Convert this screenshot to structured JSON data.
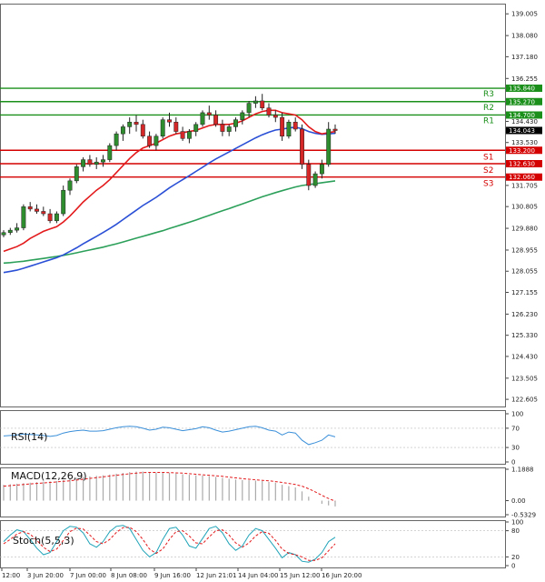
{
  "colors": {
    "up_candle": "#2e8b2e",
    "down_candle": "#d62728",
    "ema_fast": "#e31a1c",
    "ema_mid": "#2b50d6",
    "ema_slow": "#2ca05a",
    "resistance": "#1a8f1a",
    "support": "#d40000",
    "rsi": "#3a8fd9",
    "macd_signal": "#e31a1c",
    "stoch_k": "#1fa3b8",
    "stoch_d": "#e31a1c",
    "current_price_tag": "#000000"
  },
  "chart_data": [
    {
      "type": "candlestick",
      "panel": "price",
      "ylim": [
        122.3,
        139.4
      ],
      "y_ticks": [
        "139.005",
        "138.080",
        "137.180",
        "136.255",
        "134.430",
        "133.530",
        "131.705",
        "130.805",
        "129.880",
        "128.955",
        "128.055",
        "127.155",
        "126.230",
        "125.330",
        "124.430",
        "123.505",
        "122.605"
      ],
      "x_ticks": [
        "12:00",
        "3 Jun 20:00",
        "7 Jun 00:00",
        "8 Jun 08:00",
        "9 Jun 16:00",
        "12 Jun 21:01",
        "14 Jun 04:00",
        "15 Jun 12:00",
        "16 Jun 20:00"
      ],
      "levels": [
        {
          "name": "R3",
          "value": 135.84,
          "tag": "135.840"
        },
        {
          "name": "R2",
          "value": 135.27,
          "tag": "135.270"
        },
        {
          "name": "R1",
          "value": 134.7,
          "tag": "134.700"
        },
        {
          "name": "S1",
          "value": 133.2,
          "tag": "133.200"
        },
        {
          "name": "S2",
          "value": 132.63,
          "tag": "132.630"
        },
        {
          "name": "S3",
          "value": 132.06,
          "tag": "132.060"
        }
      ],
      "current_price": {
        "value": 134.043,
        "tag": "134.043"
      },
      "candles": [
        [
          129.6,
          129.8,
          129.5,
          129.7
        ],
        [
          129.7,
          129.9,
          129.6,
          129.8
        ],
        [
          129.8,
          130.1,
          129.7,
          129.9
        ],
        [
          129.9,
          130.9,
          129.8,
          130.8
        ],
        [
          130.8,
          131.0,
          130.6,
          130.7
        ],
        [
          130.7,
          130.9,
          130.5,
          130.6
        ],
        [
          130.6,
          130.8,
          130.4,
          130.5
        ],
        [
          130.5,
          130.7,
          130.1,
          130.2
        ],
        [
          130.2,
          130.6,
          130.1,
          130.5
        ],
        [
          130.5,
          131.7,
          130.4,
          131.5
        ],
        [
          131.5,
          132.0,
          131.3,
          131.9
        ],
        [
          131.9,
          132.6,
          131.8,
          132.5
        ],
        [
          132.5,
          132.9,
          132.3,
          132.8
        ],
        [
          132.8,
          133.0,
          132.5,
          132.6
        ],
        [
          132.6,
          132.9,
          132.4,
          132.7
        ],
        [
          132.7,
          133.0,
          132.5,
          132.8
        ],
        [
          132.8,
          133.5,
          132.7,
          133.4
        ],
        [
          133.4,
          134.0,
          133.2,
          133.9
        ],
        [
          133.9,
          134.3,
          133.6,
          134.2
        ],
        [
          134.2,
          134.6,
          133.9,
          134.4
        ],
        [
          134.4,
          134.7,
          134.0,
          134.3
        ],
        [
          134.3,
          134.5,
          133.7,
          133.8
        ],
        [
          133.8,
          134.0,
          133.3,
          133.4
        ],
        [
          133.4,
          133.9,
          133.2,
          133.8
        ],
        [
          133.8,
          134.6,
          133.7,
          134.5
        ],
        [
          134.5,
          134.8,
          134.2,
          134.4
        ],
        [
          134.4,
          134.6,
          133.9,
          134.0
        ],
        [
          134.0,
          134.2,
          133.6,
          133.7
        ],
        [
          133.7,
          134.1,
          133.5,
          134.0
        ],
        [
          134.0,
          134.4,
          133.8,
          134.3
        ],
        [
          134.3,
          134.9,
          134.2,
          134.8
        ],
        [
          134.8,
          135.1,
          134.5,
          134.7
        ],
        [
          134.7,
          134.9,
          134.2,
          134.3
        ],
        [
          134.3,
          134.5,
          133.8,
          134.0
        ],
        [
          134.0,
          134.3,
          133.8,
          134.2
        ],
        [
          134.2,
          134.6,
          134.0,
          134.5
        ],
        [
          134.5,
          134.9,
          134.3,
          134.8
        ],
        [
          134.8,
          135.3,
          134.6,
          135.2
        ],
        [
          135.2,
          135.5,
          135.0,
          135.3
        ],
        [
          135.3,
          135.6,
          134.9,
          135.0
        ],
        [
          135.0,
          135.2,
          134.6,
          134.7
        ],
        [
          134.7,
          134.9,
          134.4,
          134.6
        ],
        [
          134.6,
          134.8,
          133.6,
          133.8
        ],
        [
          133.8,
          134.5,
          133.7,
          134.4
        ],
        [
          134.4,
          134.6,
          134.0,
          134.1
        ],
        [
          134.1,
          134.3,
          132.4,
          132.6
        ],
        [
          132.6,
          132.8,
          131.5,
          131.7
        ],
        [
          131.7,
          132.3,
          131.6,
          132.2
        ],
        [
          132.2,
          132.8,
          132.0,
          132.6
        ],
        [
          132.6,
          134.4,
          132.5,
          134.1
        ],
        [
          134.1,
          134.3,
          133.9,
          134.04
        ]
      ],
      "ema_fast": [
        128.9,
        129.0,
        129.1,
        129.25,
        129.45,
        129.6,
        129.75,
        129.85,
        129.95,
        130.15,
        130.4,
        130.7,
        131.0,
        131.25,
        131.5,
        131.7,
        131.95,
        132.25,
        132.55,
        132.85,
        133.1,
        133.3,
        133.4,
        133.5,
        133.65,
        133.8,
        133.9,
        133.95,
        134.0,
        134.05,
        134.15,
        134.25,
        134.3,
        134.3,
        134.3,
        134.35,
        134.45,
        134.6,
        134.75,
        134.85,
        134.9,
        134.9,
        134.8,
        134.75,
        134.7,
        134.5,
        134.2,
        134.0,
        133.9,
        133.95,
        134.0
      ],
      "ema_mid": [
        128.0,
        128.05,
        128.1,
        128.18,
        128.27,
        128.36,
        128.45,
        128.54,
        128.63,
        128.75,
        128.9,
        129.05,
        129.22,
        129.38,
        129.54,
        129.7,
        129.87,
        130.05,
        130.25,
        130.45,
        130.65,
        130.85,
        131.02,
        131.2,
        131.4,
        131.6,
        131.78,
        131.95,
        132.12,
        132.3,
        132.48,
        132.66,
        132.83,
        132.98,
        133.13,
        133.28,
        133.43,
        133.58,
        133.73,
        133.86,
        133.97,
        134.06,
        134.1,
        134.15,
        134.18,
        134.12,
        134.0,
        133.92,
        133.88,
        133.9,
        133.92
      ],
      "ema_slow": [
        128.4,
        128.42,
        128.45,
        128.48,
        128.52,
        128.56,
        128.6,
        128.64,
        128.68,
        128.73,
        128.78,
        128.84,
        128.9,
        128.96,
        129.02,
        129.08,
        129.15,
        129.22,
        129.3,
        129.38,
        129.46,
        129.54,
        129.62,
        129.7,
        129.78,
        129.87,
        129.96,
        130.05,
        130.14,
        130.23,
        130.33,
        130.43,
        130.53,
        130.63,
        130.72,
        130.82,
        130.92,
        131.02,
        131.12,
        131.22,
        131.31,
        131.4,
        131.48,
        131.56,
        131.64,
        131.7,
        131.74,
        131.78,
        131.82,
        131.86,
        131.9
      ]
    },
    {
      "type": "line",
      "panel": "rsi",
      "label": "RSI(14)",
      "ylim": [
        0,
        100
      ],
      "y_ticks": [
        "100",
        "70",
        "30",
        "0"
      ],
      "values": [
        54,
        55,
        56,
        58,
        57,
        56,
        55,
        53,
        55,
        60,
        63,
        65,
        66,
        64,
        64,
        65,
        68,
        71,
        73,
        74,
        73,
        70,
        66,
        68,
        72,
        71,
        68,
        65,
        67,
        69,
        73,
        71,
        66,
        62,
        64,
        67,
        70,
        73,
        74,
        71,
        66,
        64,
        56,
        62,
        60,
        45,
        36,
        40,
        45,
        56,
        52
      ]
    },
    {
      "type": "bar",
      "panel": "macd",
      "label": "MACD(12,26,9)",
      "ylim": [
        -0.5329,
        1.1888
      ],
      "y_ticks": [
        "1.1888",
        "0.00",
        "-0.5329"
      ],
      "histogram": [
        0.6,
        0.62,
        0.64,
        0.66,
        0.68,
        0.7,
        0.72,
        0.73,
        0.74,
        0.78,
        0.82,
        0.86,
        0.9,
        0.92,
        0.94,
        0.96,
        0.99,
        1.02,
        1.05,
        1.08,
        1.1,
        1.1,
        1.08,
        1.06,
        1.06,
        1.05,
        1.03,
        1.0,
        0.98,
        0.96,
        0.95,
        0.93,
        0.9,
        0.86,
        0.83,
        0.8,
        0.78,
        0.77,
        0.76,
        0.74,
        0.71,
        0.68,
        0.6,
        0.55,
        0.5,
        0.35,
        0.15,
        0.0,
        -0.12,
        -0.18,
        -0.22
      ],
      "signal": [
        0.55,
        0.57,
        0.59,
        0.61,
        0.63,
        0.65,
        0.67,
        0.69,
        0.71,
        0.73,
        0.75,
        0.78,
        0.81,
        0.84,
        0.87,
        0.9,
        0.93,
        0.96,
        0.99,
        1.02,
        1.04,
        1.06,
        1.07,
        1.07,
        1.07,
        1.06,
        1.05,
        1.04,
        1.02,
        1.0,
        0.98,
        0.96,
        0.94,
        0.92,
        0.89,
        0.86,
        0.83,
        0.81,
        0.79,
        0.77,
        0.75,
        0.72,
        0.69,
        0.65,
        0.61,
        0.55,
        0.45,
        0.33,
        0.2,
        0.08,
        -0.02
      ]
    },
    {
      "type": "line",
      "panel": "stoch",
      "label": "Stoch(5,5,3)",
      "ylim": [
        0,
        100
      ],
      "y_ticks": [
        "100",
        "80",
        "20",
        "0"
      ],
      "k": [
        55,
        70,
        82,
        78,
        60,
        40,
        25,
        30,
        55,
        80,
        90,
        88,
        75,
        50,
        42,
        55,
        78,
        90,
        92,
        85,
        60,
        35,
        20,
        30,
        60,
        85,
        88,
        70,
        45,
        40,
        62,
        85,
        90,
        75,
        50,
        35,
        45,
        70,
        85,
        80,
        60,
        40,
        18,
        30,
        25,
        10,
        8,
        15,
        30,
        55,
        65
      ],
      "d": [
        50,
        60,
        72,
        78,
        72,
        58,
        42,
        32,
        38,
        58,
        78,
        86,
        84,
        70,
        55,
        50,
        60,
        76,
        87,
        88,
        78,
        60,
        38,
        28,
        38,
        60,
        78,
        80,
        68,
        52,
        50,
        66,
        80,
        82,
        70,
        52,
        42,
        52,
        68,
        78,
        74,
        58,
        38,
        28,
        25,
        20,
        12,
        12,
        18,
        34,
        50
      ]
    }
  ]
}
